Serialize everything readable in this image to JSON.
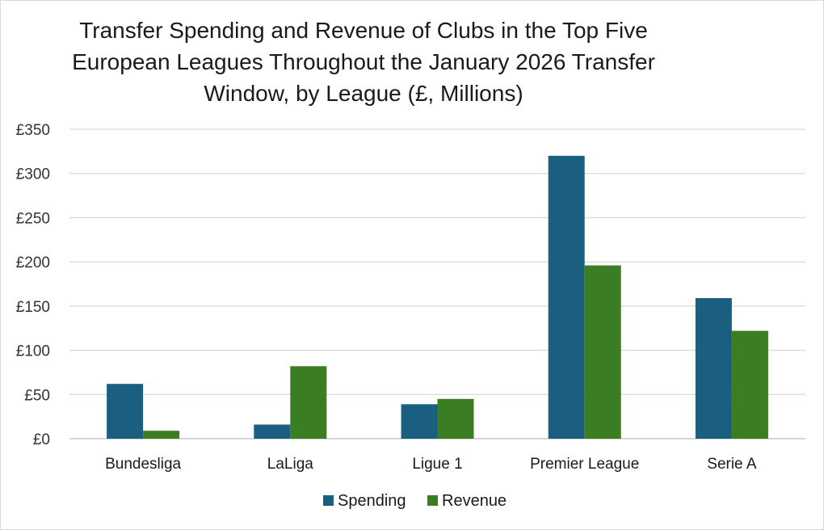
{
  "chart_data": {
    "type": "bar",
    "title_lines": [
      "Transfer Spending and Revenue of Clubs in the Top Five",
      "European Leagues Throughout the January 2026 Transfer",
      "Window, by League (£, Millions)"
    ],
    "categories": [
      "Bundesliga",
      "LaLiga",
      "Ligue 1",
      "Premier League",
      "Serie A"
    ],
    "series": [
      {
        "name": "Spending",
        "color": "#1a5f80",
        "values": [
          62,
          16,
          39,
          320,
          159
        ]
      },
      {
        "name": "Revenue",
        "color": "#3b7d23",
        "values": [
          9,
          82,
          45,
          196,
          122
        ]
      }
    ],
    "y_ticks": [
      "£0",
      "£50",
      "£100",
      "£150",
      "£200",
      "£250",
      "£300",
      "£350"
    ],
    "ylim": [
      0,
      350
    ],
    "xlabel": "",
    "ylabel": "",
    "grid": true,
    "legend_position": "bottom"
  }
}
